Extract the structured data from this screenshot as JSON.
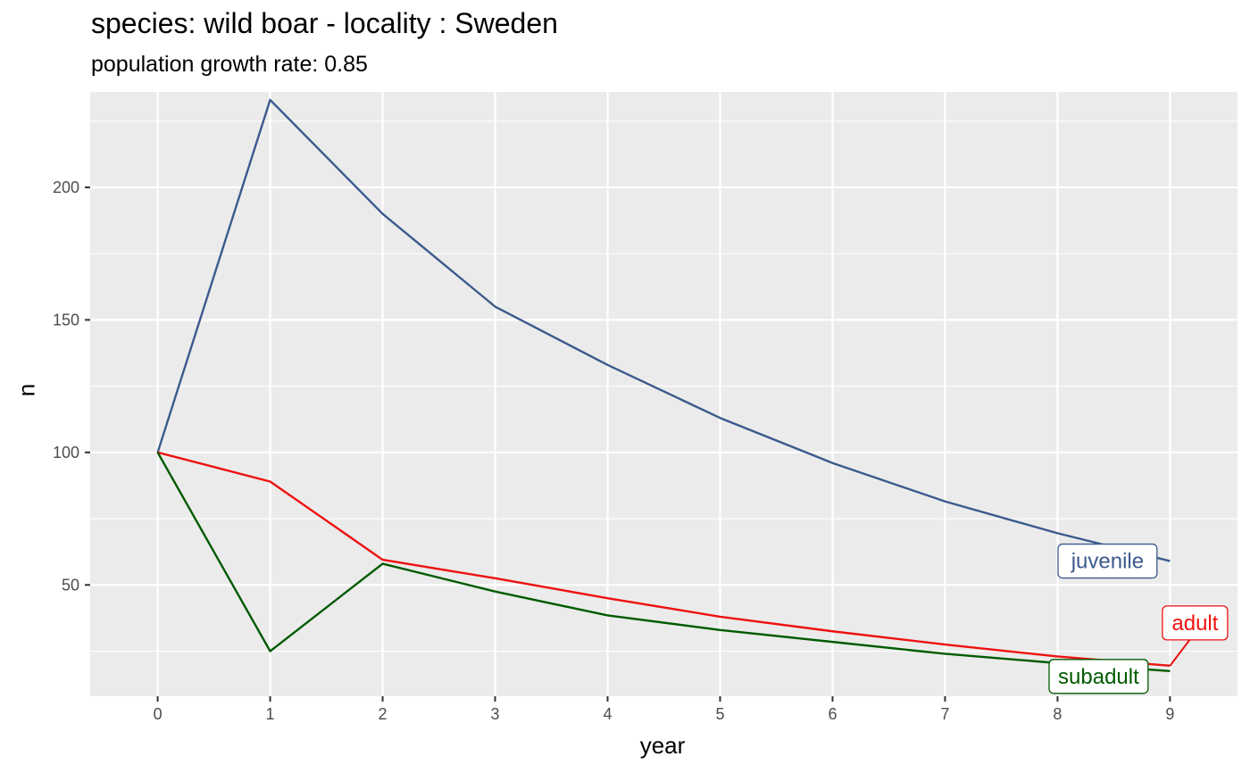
{
  "chart_data": {
    "type": "line",
    "title": "species: wild boar - locality : Sweden",
    "subtitle": "population growth rate: 0.85",
    "xlabel": "year",
    "ylabel": "n",
    "x": [
      0,
      1,
      2,
      3,
      4,
      5,
      6,
      7,
      8,
      9
    ],
    "xlim": [
      -0.6,
      9.6
    ],
    "ylim": [
      8,
      236
    ],
    "x_ticks": [
      "0",
      "1",
      "2",
      "3",
      "4",
      "5",
      "6",
      "7",
      "8",
      "9"
    ],
    "y_ticks": [
      50,
      100,
      150,
      200
    ],
    "y_tick_labels": [
      "50",
      "100",
      "150",
      "200"
    ],
    "grid": true,
    "legend": "none",
    "background": "#ebebeb",
    "series": [
      {
        "name": "juvenile",
        "color": "#3b5a8c",
        "values": [
          100,
          233,
          190,
          155,
          133,
          113,
          96,
          81.5,
          69.5,
          59
        ]
      },
      {
        "name": "adult",
        "color": "#ee1111",
        "values": [
          100,
          89,
          59.5,
          52.5,
          45,
          38,
          32.5,
          27.5,
          23,
          19.5
        ]
      },
      {
        "name": "subadult",
        "color": "#005a00",
        "values": [
          100,
          25,
          58,
          47.5,
          38.5,
          33,
          28.5,
          24,
          20.5,
          17.5
        ]
      }
    ]
  }
}
